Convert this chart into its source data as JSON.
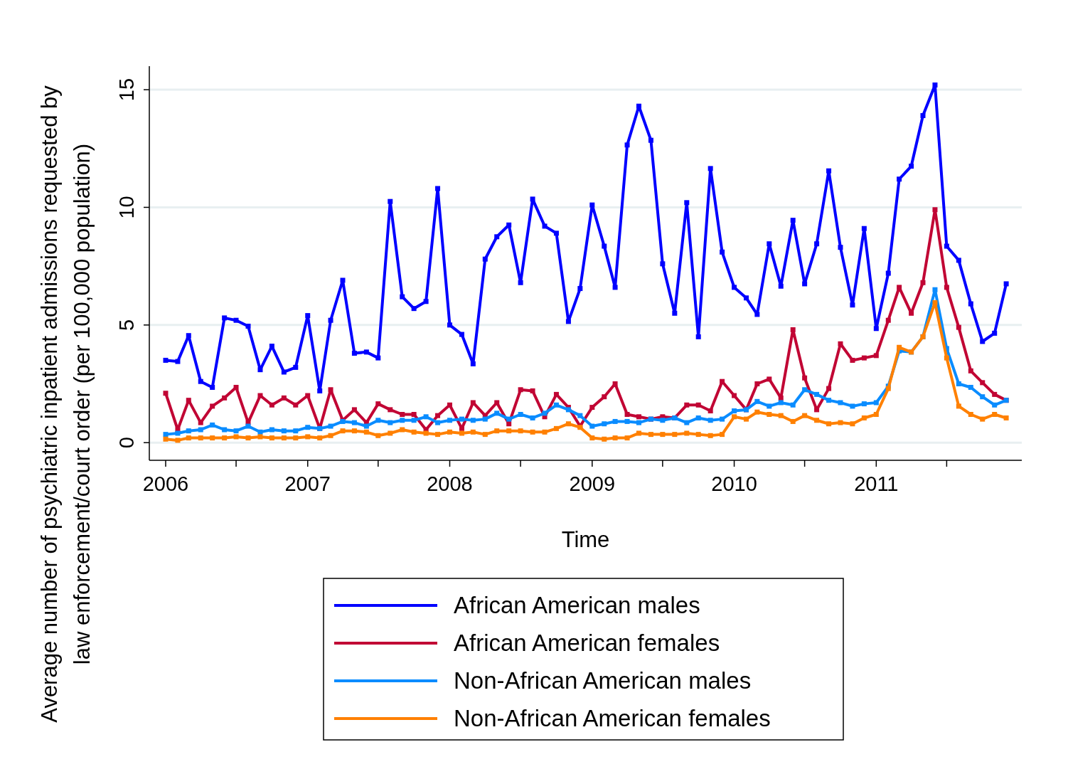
{
  "chart_data": {
    "type": "line",
    "xlabel": "Time",
    "ylabel": "Average number of psychiatric inpatient admissions requested by\nlaw enforcement/court order (per 100,000 population)",
    "x": [
      "2006-01",
      "2006-02",
      "2006-03",
      "2006-04",
      "2006-05",
      "2006-06",
      "2006-07",
      "2006-08",
      "2006-09",
      "2006-10",
      "2006-11",
      "2006-12",
      "2007-01",
      "2007-02",
      "2007-03",
      "2007-04",
      "2007-05",
      "2007-06",
      "2007-07",
      "2007-08",
      "2007-09",
      "2007-10",
      "2007-11",
      "2007-12",
      "2008-01",
      "2008-02",
      "2008-03",
      "2008-04",
      "2008-05",
      "2008-06",
      "2008-07",
      "2008-08",
      "2008-09",
      "2008-10",
      "2008-11",
      "2008-12",
      "2009-01",
      "2009-02",
      "2009-03",
      "2009-04",
      "2009-05",
      "2009-06",
      "2009-07",
      "2009-08",
      "2009-09",
      "2009-10",
      "2009-11",
      "2009-12",
      "2010-01",
      "2010-02",
      "2010-03",
      "2010-04",
      "2010-05",
      "2010-06",
      "2010-07",
      "2010-08",
      "2010-09",
      "2010-10",
      "2010-11",
      "2010-12",
      "2011-01",
      "2011-02",
      "2011-03",
      "2011-04",
      "2011-05",
      "2011-06",
      "2011-07",
      "2011-08",
      "2011-09",
      "2011-10",
      "2011-11",
      "2011-12"
    ],
    "series": [
      {
        "name": "African American males",
        "color": "#0000ff",
        "values": [
          3.5,
          3.45,
          4.55,
          2.6,
          2.35,
          5.3,
          5.2,
          4.95,
          3.1,
          4.1,
          3.0,
          3.2,
          5.4,
          2.2,
          5.2,
          6.9,
          3.8,
          3.85,
          3.6,
          10.25,
          6.2,
          5.7,
          6.0,
          10.8,
          5.0,
          4.6,
          3.35,
          7.8,
          8.75,
          9.25,
          6.8,
          10.35,
          9.2,
          8.9,
          5.15,
          6.55,
          10.1,
          8.35,
          6.6,
          12.65,
          14.3,
          12.85,
          7.6,
          5.5,
          10.2,
          4.5,
          11.65,
          8.1,
          6.6,
          6.15,
          5.45,
          8.45,
          6.65,
          9.45,
          6.75,
          8.45,
          11.55,
          8.3,
          5.85,
          9.1,
          4.85,
          7.2,
          11.2,
          11.75,
          13.9,
          15.2,
          8.35,
          7.75,
          5.9,
          4.3,
          4.65,
          6.75
        ]
      },
      {
        "name": "African American females",
        "color": "#c10534",
        "values": [
          2.1,
          0.55,
          1.8,
          0.85,
          1.55,
          1.9,
          2.35,
          0.85,
          2.0,
          1.6,
          1.9,
          1.6,
          2.0,
          0.6,
          2.25,
          0.95,
          1.4,
          0.85,
          1.65,
          1.4,
          1.2,
          1.2,
          0.55,
          1.15,
          1.6,
          0.6,
          1.7,
          1.15,
          1.7,
          0.8,
          2.25,
          2.2,
          1.1,
          2.05,
          1.5,
          0.7,
          1.5,
          1.95,
          2.5,
          1.2,
          1.1,
          1.0,
          1.1,
          1.05,
          1.6,
          1.6,
          1.35,
          2.6,
          2.0,
          1.4,
          2.5,
          2.7,
          1.9,
          4.8,
          2.75,
          1.4,
          2.3,
          4.2,
          3.5,
          3.6,
          3.7,
          5.2,
          6.6,
          5.5,
          6.8,
          9.9,
          6.6,
          4.9,
          3.05,
          2.55,
          2.05,
          1.8
        ]
      },
      {
        "name": "Non-African American males",
        "color": "#0a8cff",
        "values": [
          0.35,
          0.4,
          0.5,
          0.55,
          0.75,
          0.55,
          0.5,
          0.7,
          0.45,
          0.55,
          0.5,
          0.5,
          0.65,
          0.6,
          0.7,
          0.9,
          0.85,
          0.7,
          0.95,
          0.85,
          0.95,
          0.95,
          1.1,
          0.85,
          0.95,
          1.0,
          0.95,
          1.0,
          1.25,
          1.0,
          1.2,
          1.05,
          1.25,
          1.6,
          1.4,
          1.15,
          0.7,
          0.8,
          0.9,
          0.9,
          0.85,
          1.0,
          0.95,
          1.05,
          0.85,
          1.05,
          0.95,
          1.0,
          1.35,
          1.4,
          1.75,
          1.55,
          1.7,
          1.6,
          2.25,
          2.05,
          1.8,
          1.7,
          1.55,
          1.65,
          1.7,
          2.4,
          3.9,
          3.85,
          4.5,
          6.5,
          4.0,
          2.5,
          2.35,
          1.95,
          1.6,
          1.8
        ]
      },
      {
        "name": "Non-African American females",
        "color": "#ff8000",
        "values": [
          0.15,
          0.1,
          0.2,
          0.2,
          0.2,
          0.2,
          0.25,
          0.2,
          0.25,
          0.2,
          0.2,
          0.2,
          0.25,
          0.2,
          0.3,
          0.5,
          0.5,
          0.45,
          0.3,
          0.4,
          0.55,
          0.45,
          0.4,
          0.35,
          0.45,
          0.4,
          0.45,
          0.35,
          0.5,
          0.5,
          0.5,
          0.45,
          0.45,
          0.6,
          0.8,
          0.65,
          0.2,
          0.15,
          0.2,
          0.2,
          0.4,
          0.35,
          0.35,
          0.35,
          0.4,
          0.35,
          0.3,
          0.35,
          1.1,
          1.0,
          1.3,
          1.2,
          1.15,
          0.9,
          1.15,
          0.95,
          0.8,
          0.85,
          0.8,
          1.05,
          1.2,
          2.3,
          4.05,
          3.85,
          4.5,
          5.95,
          3.6,
          1.55,
          1.2,
          1.0,
          1.2,
          1.05
        ]
      }
    ],
    "xlim": [
      "2005-11-20",
      "2012-01-10"
    ],
    "xticks": [
      {
        "value": "2006-01",
        "label": "2006"
      },
      {
        "value": "2006-07",
        "label": null
      },
      {
        "value": "2007-01",
        "label": "2007"
      },
      {
        "value": "2007-07",
        "label": null
      },
      {
        "value": "2008-01",
        "label": "2008"
      },
      {
        "value": "2008-07",
        "label": null
      },
      {
        "value": "2009-01",
        "label": "2009"
      },
      {
        "value": "2009-07",
        "label": null
      },
      {
        "value": "2010-01",
        "label": "2010"
      },
      {
        "value": "2010-07",
        "label": null
      },
      {
        "value": "2011-01",
        "label": "2011"
      },
      {
        "value": "2011-07",
        "label": null
      }
    ],
    "ylim": [
      -0.75,
      16
    ],
    "yticks": [
      0,
      5,
      10,
      15
    ],
    "grid": "y",
    "legend": "bottom",
    "marker": "square",
    "line_style": "solid"
  }
}
